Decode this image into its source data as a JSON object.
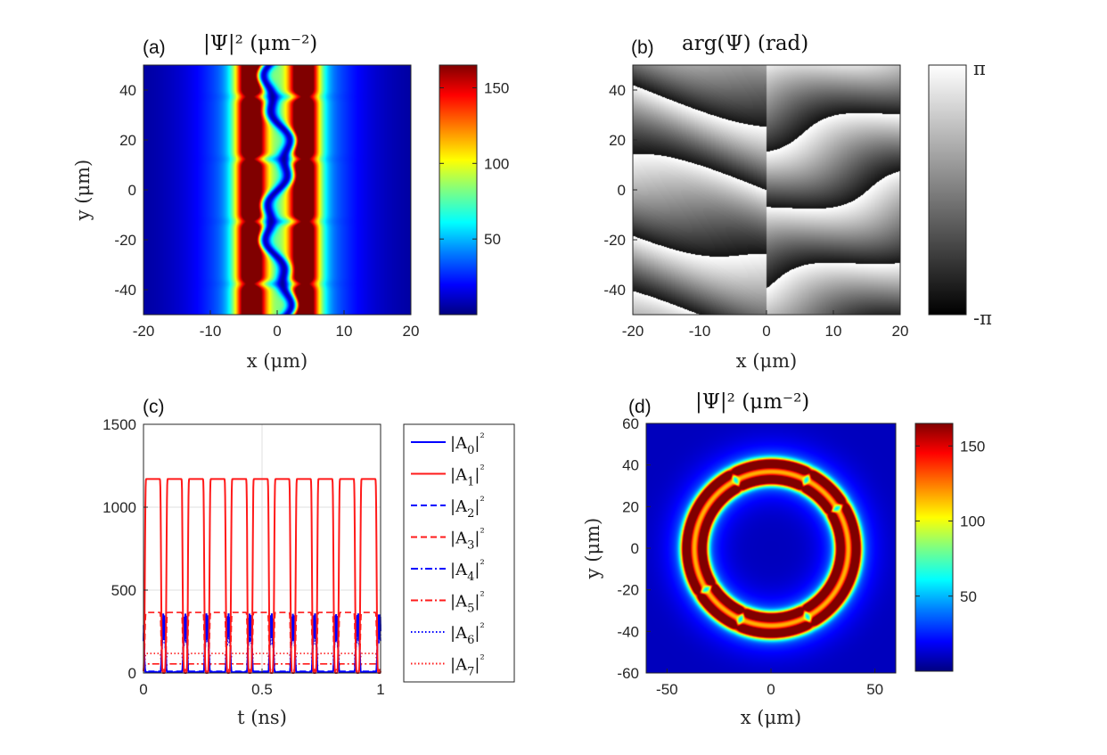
{
  "colors": {
    "jet": [
      "#000080",
      "#0000ff",
      "#0080ff",
      "#00ffff",
      "#80ff80",
      "#ffff00",
      "#ff8000",
      "#ff0000",
      "#800000"
    ],
    "blue": "#0000ff",
    "red": "#ff1a1a"
  },
  "chart_data": [
    {
      "id": "a",
      "type": "heatmap",
      "panel_label": "(a)",
      "title": "|Ψ|² (μm⁻²)",
      "xlabel": "x (μm)",
      "ylabel": "y (μm)",
      "xlim": [
        -20,
        20
      ],
      "ylim": [
        -50,
        50
      ],
      "xticks": [
        "-20",
        "-10",
        "0",
        "10",
        "20"
      ],
      "xtick_values": [
        -20,
        -10,
        0,
        10,
        20
      ],
      "yticks": [
        "-40",
        "-20",
        "0",
        "20",
        "40"
      ],
      "ytick_values": [
        -40,
        -20,
        0,
        20,
        40
      ],
      "colorbar": {
        "range": [
          0,
          165
        ],
        "ticks": [
          "50",
          "100",
          "150"
        ],
        "tick_values": [
          50,
          100,
          150
        ]
      },
      "stripes_x": [
        -4,
        4
      ],
      "stripe_width": 2.2,
      "center_line_x": 0,
      "peak": 160
    },
    {
      "id": "b",
      "type": "heatmap",
      "panel_label": "(b)",
      "title": "arg(Ψ) (rad)",
      "xlabel": "x (μm)",
      "ylabel": "",
      "xlim": [
        -20,
        20
      ],
      "ylim": [
        -50,
        50
      ],
      "xticks": [
        "-20",
        "-10",
        "0",
        "10",
        "20"
      ],
      "xtick_values": [
        -20,
        -10,
        0,
        10,
        20
      ],
      "yticks": [
        "-40",
        "-20",
        "0",
        "20",
        "40"
      ],
      "ytick_values": [
        -40,
        -20,
        0,
        20,
        40
      ],
      "colorbar": {
        "range": [
          "-π",
          "π"
        ],
        "ticks": [
          "π",
          "-π"
        ]
      }
    },
    {
      "id": "c",
      "type": "line",
      "panel_label": "(c)",
      "title": "",
      "xlabel": "t (ns)",
      "ylabel": "",
      "xlim": [
        0,
        1
      ],
      "ylim": [
        0,
        1500
      ],
      "xticks": [
        "0",
        "0.5",
        "1"
      ],
      "xtick_values": [
        0,
        0.5,
        1
      ],
      "yticks": [
        "0",
        "500",
        "1000",
        "1500"
      ],
      "ytick_values": [
        0,
        500,
        1000,
        1500
      ],
      "grid": true,
      "period_ns": 0.0909,
      "series": [
        {
          "name": "|A0|²",
          "sub": "0",
          "color": "blue",
          "dash": "solid",
          "baseline": 5,
          "peak": 360
        },
        {
          "name": "|A1|²",
          "sub": "1",
          "color": "red",
          "dash": "solid",
          "baseline": 1170,
          "dip": 0
        },
        {
          "name": "|A2|²",
          "sub": "2",
          "color": "blue",
          "dash": "dashed",
          "baseline": 10,
          "peak": 340
        },
        {
          "name": "|A3|²",
          "sub": "3",
          "color": "red",
          "dash": "dashed",
          "baseline": 365,
          "dip": 20
        },
        {
          "name": "|A4|²",
          "sub": "4",
          "color": "blue",
          "dash": "dashdot",
          "baseline": 8,
          "peak": 300
        },
        {
          "name": "|A5|²",
          "sub": "5",
          "color": "red",
          "dash": "dashdot",
          "baseline": 55,
          "dip": 10
        },
        {
          "name": "|A6|²",
          "sub": "6",
          "color": "blue",
          "dash": "dotted",
          "baseline": 6,
          "peak": 280
        },
        {
          "name": "|A7|²",
          "sub": "7",
          "color": "red",
          "dash": "dotted",
          "baseline": 118,
          "dip": 15
        }
      ]
    },
    {
      "id": "d",
      "type": "heatmap",
      "panel_label": "(d)",
      "title": "|Ψ|² (μm⁻²)",
      "xlabel": "x (μm)",
      "ylabel": "y (μm)",
      "xlim": [
        -60,
        60
      ],
      "ylim": [
        -60,
        60
      ],
      "xticks": [
        "-50",
        "0",
        "50"
      ],
      "xtick_values": [
        -50,
        0,
        50
      ],
      "yticks": [
        "-60",
        "-40",
        "-20",
        "0",
        "20",
        "40",
        "60"
      ],
      "ytick_values": [
        -60,
        -40,
        -20,
        0,
        20,
        40,
        60
      ],
      "colorbar": {
        "range": [
          0,
          165
        ],
        "ticks": [
          "50",
          "100",
          "150"
        ],
        "tick_values": [
          50,
          100,
          150
        ]
      },
      "ring_radii": [
        33,
        41
      ],
      "ring_width": 2.4,
      "peak": 160
    }
  ]
}
